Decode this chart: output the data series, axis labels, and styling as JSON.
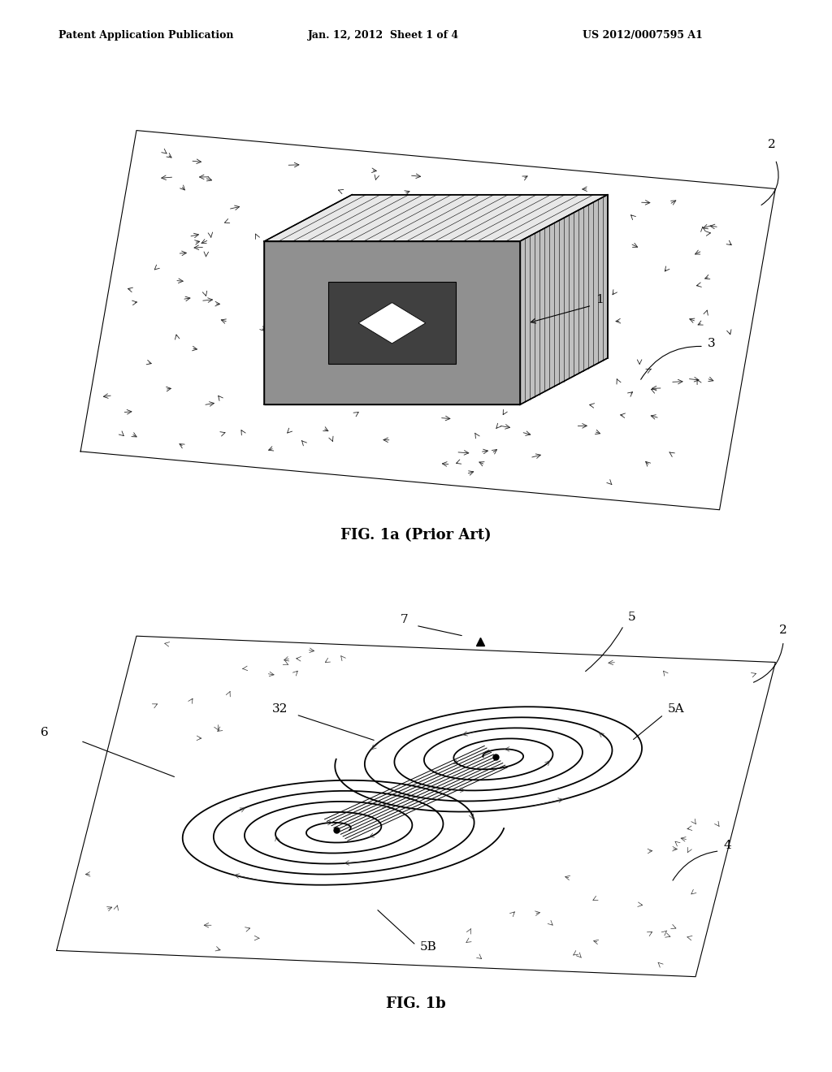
{
  "header_left": "Patent Application Publication",
  "header_mid": "Jan. 12, 2012  Sheet 1 of 4",
  "header_right": "US 2012/0007595 A1",
  "fig1a_caption": "FIG. 1a (Prior Art)",
  "fig1b_caption": "FIG. 1b",
  "label_1": "1",
  "label_2": "2",
  "label_3": "3",
  "label_4": "4",
  "label_5": "5",
  "label_5A": "5A",
  "label_5B": "5B",
  "label_6": "6",
  "label_7": "7",
  "label_32": "32",
  "bg_color": "#ffffff",
  "line_color": "#000000"
}
